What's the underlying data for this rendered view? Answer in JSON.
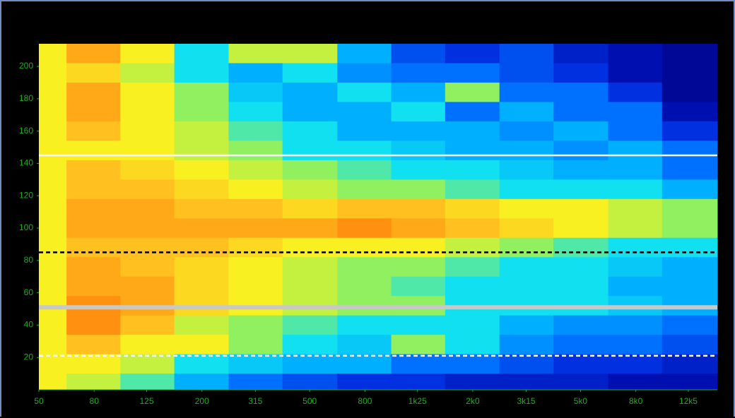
{
  "chart_data": {
    "type": "heatmap",
    "xscale": "log",
    "xlim": [
      50,
      16000
    ],
    "ylim": [
      0,
      214
    ],
    "xticks": [
      50,
      80,
      125,
      200,
      315,
      500,
      800,
      {
        "value": 1250,
        "label": "1k25"
      },
      {
        "value": 2000,
        "label": "2k0"
      },
      {
        "value": 3150,
        "label": "3k15"
      },
      {
        "value": 5000,
        "label": "5k0"
      },
      {
        "value": 8000,
        "label": "8k0"
      },
      {
        "value": 12500,
        "label": "12k5"
      }
    ],
    "yticks": [
      20,
      40,
      60,
      80,
      100,
      120,
      140,
      160,
      180,
      200
    ],
    "tick_color": "#1fae1f",
    "x": [
      50,
      80,
      125,
      200,
      315,
      500,
      800,
      1250,
      2000,
      3150,
      5000,
      8000,
      12500
    ],
    "y": [
      208,
      196,
      184,
      172,
      160,
      148,
      136,
      124,
      112,
      100,
      88,
      76,
      64,
      52,
      40,
      28,
      16,
      4
    ],
    "zlim": [
      0,
      10
    ],
    "colormap": [
      "#00007a",
      "#0010b0",
      "#0030e0",
      "#0070ff",
      "#00b0ff",
      "#10e0f0",
      "#90f060",
      "#f8f020",
      "#ffc020",
      "#ff9010",
      "#ff6000"
    ],
    "z": [
      [
        7,
        8.5,
        7,
        5,
        6.5,
        6.5,
        4,
        2.5,
        2,
        2.5,
        1.5,
        1,
        0.5
      ],
      [
        7,
        7.5,
        6.5,
        5,
        4,
        5,
        3.5,
        3,
        3,
        2.5,
        2,
        1,
        0.5
      ],
      [
        7,
        8.5,
        7,
        6,
        4.5,
        4,
        5,
        4,
        6,
        3,
        3,
        2,
        0.5
      ],
      [
        7,
        8.5,
        7,
        6,
        5,
        4,
        4,
        5,
        3,
        4,
        3,
        3,
        1
      ],
      [
        7,
        8,
        7,
        6.5,
        5.5,
        5,
        4,
        4,
        4,
        3.5,
        4,
        3,
        2
      ],
      [
        7,
        7,
        7,
        6.5,
        6,
        5,
        5,
        4.5,
        4,
        4,
        3.5,
        4,
        3
      ],
      [
        7,
        8,
        7.5,
        7,
        6.5,
        6,
        5.5,
        5,
        5,
        4.5,
        4,
        4,
        3
      ],
      [
        7,
        8,
        8,
        7.5,
        7,
        6.5,
        6,
        6,
        5.5,
        5,
        5,
        5,
        4
      ],
      [
        7,
        8.5,
        8.5,
        8,
        8,
        7.5,
        8,
        8,
        7.5,
        7,
        7,
        6.5,
        6
      ],
      [
        7,
        8.5,
        8.5,
        8.5,
        8.5,
        8.5,
        9,
        8.5,
        8,
        7.5,
        7,
        6.5,
        6
      ],
      [
        7,
        8,
        8,
        8,
        7.5,
        7,
        7,
        7,
        6.5,
        6,
        5.5,
        5,
        5
      ],
      [
        7,
        8.5,
        8,
        7.5,
        7,
        6.5,
        6,
        6,
        5.5,
        5,
        5,
        4.5,
        4
      ],
      [
        7,
        8.5,
        8.5,
        7.5,
        7,
        6.5,
        6,
        5.5,
        5,
        5,
        5,
        4,
        4
      ],
      [
        7,
        9,
        8.5,
        7.5,
        7,
        6.5,
        6,
        6,
        5,
        5,
        5,
        4.5,
        4
      ],
      [
        7,
        9,
        8,
        6.5,
        6,
        5.5,
        5,
        5,
        5,
        4,
        3.5,
        3.5,
        3
      ],
      [
        7,
        8,
        7,
        7,
        6,
        5,
        4.5,
        6,
        5,
        3.5,
        3,
        3,
        2.5
      ],
      [
        7,
        7,
        6.5,
        5,
        4.5,
        4,
        4,
        3,
        3,
        2.5,
        2,
        2,
        1.5
      ],
      [
        7,
        6.5,
        5.5,
        4,
        3,
        2.5,
        2,
        2,
        1.5,
        1.5,
        1.5,
        1,
        1
      ]
    ],
    "hlines": [
      {
        "value": 145,
        "color": "#ffffff",
        "style": "solid"
      },
      {
        "value": 85,
        "color": "#000000",
        "style": "dashed"
      },
      {
        "value": 51,
        "color": "#c8c8c8",
        "style": "bold"
      },
      {
        "value": 21,
        "color": "#ffffff",
        "style": "dashed"
      }
    ]
  }
}
